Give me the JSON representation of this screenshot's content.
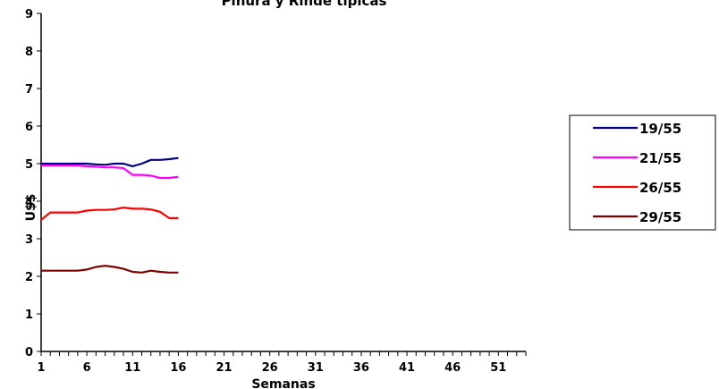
{
  "chart_data": {
    "type": "line",
    "title": "Pinura y Rinde típicas",
    "xlabel": "Semanas",
    "ylabel": "U$$",
    "xlim": [
      1,
      54
    ],
    "ylim": [
      0,
      9
    ],
    "y_ticks": [
      "0",
      "1",
      "2",
      "3",
      "4",
      "5",
      "6",
      "7",
      "8",
      "9"
    ],
    "x_ticks": [
      "1",
      "6",
      "11",
      "16",
      "21",
      "26",
      "31",
      "36",
      "41",
      "46",
      "51"
    ],
    "grid": false,
    "legend_position": "right",
    "series": [
      {
        "name": "19/55",
        "color": "#000080",
        "x": [
          1,
          2,
          3,
          4,
          5,
          6,
          7,
          8,
          9,
          10,
          11,
          12,
          13,
          14,
          15,
          16
        ],
        "values": [
          5.0,
          5.0,
          5.0,
          5.0,
          5.0,
          5.0,
          4.98,
          4.97,
          5.0,
          5.0,
          4.93,
          5.0,
          5.1,
          5.1,
          5.12,
          5.15
        ]
      },
      {
        "name": "21/55",
        "color": "#FF00FF",
        "x": [
          1,
          2,
          3,
          4,
          5,
          6,
          7,
          8,
          9,
          10,
          11,
          12,
          13,
          14,
          15,
          16
        ],
        "values": [
          4.95,
          4.95,
          4.95,
          4.95,
          4.95,
          4.93,
          4.92,
          4.9,
          4.9,
          4.88,
          4.7,
          4.7,
          4.68,
          4.62,
          4.62,
          4.65
        ]
      },
      {
        "name": "26/55",
        "color": "#FF0000",
        "x": [
          1,
          2,
          3,
          4,
          5,
          6,
          7,
          8,
          9,
          10,
          11,
          12,
          13,
          14,
          15,
          16
        ],
        "values": [
          3.5,
          3.7,
          3.7,
          3.7,
          3.7,
          3.75,
          3.77,
          3.77,
          3.78,
          3.83,
          3.8,
          3.8,
          3.78,
          3.72,
          3.55,
          3.55
        ]
      },
      {
        "name": "29/55",
        "color": "#800000",
        "x": [
          1,
          2,
          3,
          4,
          5,
          6,
          7,
          8,
          9,
          10,
          11,
          12,
          13,
          14,
          15,
          16
        ],
        "values": [
          2.15,
          2.15,
          2.15,
          2.15,
          2.15,
          2.18,
          2.25,
          2.28,
          2.25,
          2.2,
          2.12,
          2.1,
          2.15,
          2.12,
          2.1,
          2.1
        ]
      }
    ]
  }
}
